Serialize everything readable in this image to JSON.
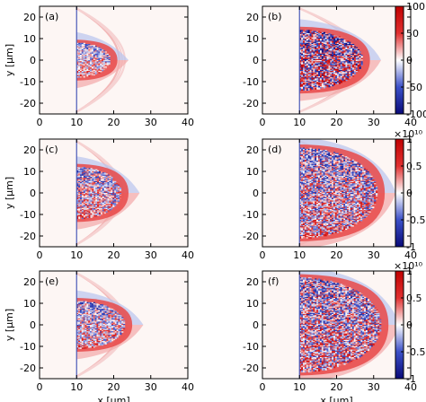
{
  "chart_data": {
    "type": "heatmap",
    "xlabel": "x [μm]",
    "ylabel": "y [μm]",
    "xlim": [
      0,
      40
    ],
    "ylim": [
      -25,
      25
    ],
    "x_ticks": [
      "0",
      "10",
      "20",
      "30",
      "40"
    ],
    "y_ticks": [
      "20",
      "10",
      "0",
      "-10",
      "-20"
    ],
    "panels": [
      {
        "label": "(a)",
        "row": 0,
        "col": 0,
        "noise": 0.5,
        "shape": {
          "x0": 10,
          "xtip": 19,
          "halfwidth": 8
        },
        "arc_x": 29
      },
      {
        "label": "(b)",
        "row": 0,
        "col": 1,
        "noise": 0.95,
        "shape": {
          "x0": 10,
          "xtip": 27,
          "halfwidth": 14
        },
        "arc_x": 38
      },
      {
        "label": "(c)",
        "row": 1,
        "col": 0,
        "noise": 0.6,
        "shape": {
          "x0": 10,
          "xtip": 22,
          "halfwidth": 12
        },
        "arc_x": 28
      },
      {
        "label": "(d)",
        "row": 1,
        "col": 1,
        "noise": 0.7,
        "shape": {
          "x0": 10,
          "xtip": 31,
          "halfwidth": 21
        },
        "arc_x": 38
      },
      {
        "label": "(e)",
        "row": 2,
        "col": 0,
        "noise": 0.6,
        "shape": {
          "x0": 10,
          "xtip": 23,
          "halfwidth": 11
        },
        "arc_x": 30
      },
      {
        "label": "(f)",
        "row": 2,
        "col": 1,
        "noise": 0.75,
        "shape": {
          "x0": 10,
          "xtip": 32,
          "halfwidth": 22
        },
        "arc_x": 38
      }
    ],
    "colorbars": [
      {
        "row": 0,
        "ticks": [
          "100",
          "50",
          "0",
          "-50",
          "-100"
        ],
        "exponent": ""
      },
      {
        "row": 1,
        "ticks": [
          "1",
          "0.5",
          "0",
          "-0.5",
          "-1"
        ],
        "exponent": "×10¹⁰"
      },
      {
        "row": 2,
        "ticks": [
          "1",
          "0.5",
          "0",
          "-0.5",
          "-1"
        ],
        "exponent": "×10¹⁰"
      }
    ],
    "colormap": [
      "#0a0a78",
      "#3c50c8",
      "#ffffff",
      "#e03030",
      "#c00000"
    ]
  }
}
